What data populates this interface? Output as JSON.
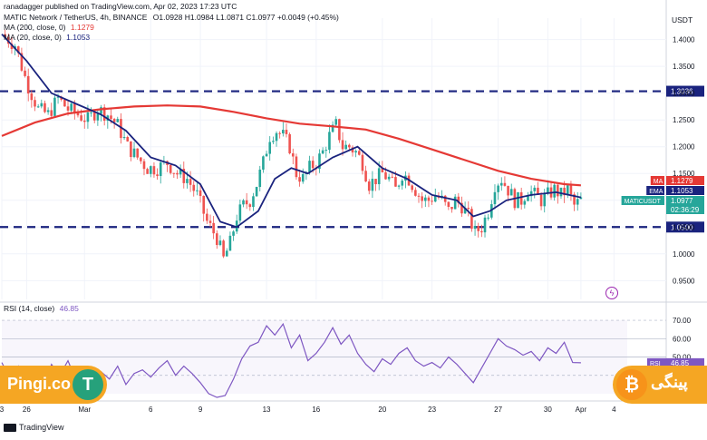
{
  "header": {
    "publisher": "ranadagger published on TradingView.com, Apr 02, 2023 17:23 UTC",
    "symbol": "MATIC Network / TetherUS, 4h, BINANCE",
    "ohlc": "O1.0928 H1.0984 L1.0871 C1.0977 +0.0049 (+0.45%)",
    "ma_line": "MA (200, close, 0)",
    "ma_value": "1.1279",
    "ema_line": "MA (20, close, 0)",
    "ema_value": "1.1053",
    "currency": "USDT"
  },
  "colors": {
    "up": "#26a69a",
    "down": "#ef5350",
    "ma": "#e53935",
    "ema": "#1a237e",
    "rsi": "#7e57c2",
    "level": "#1a237e",
    "axis_text": "#131722",
    "grid": "#f0f3fa",
    "price_tag": "#1a237e",
    "current_tag": "#26a69a"
  },
  "chart_data": [
    {
      "type": "candlestick",
      "title": "MATIC Network / TetherUS, 4h, BINANCE",
      "ylabel": "USDT",
      "ylim": [
        0.915,
        1.44
      ],
      "yticks": [
        0.95,
        1.0,
        1.05,
        1.1,
        1.15,
        1.2,
        1.25,
        1.3,
        1.35,
        1.4
      ],
      "ytick_labels": [
        "0.9500",
        "1.0000",
        "1.0500",
        "1.1000",
        "1.1500",
        "1.2000",
        "1.2500",
        "1.3000",
        "1.3500",
        "1.4000"
      ],
      "x_ticks": [
        {
          "label": "3",
          "day": 0
        },
        {
          "label": "26",
          "day": 1.5
        },
        {
          "label": "Mar",
          "day": 5
        },
        {
          "label": "6",
          "day": 9
        },
        {
          "label": "9",
          "day": 12
        },
        {
          "label": "13",
          "day": 16
        },
        {
          "label": "16",
          "day": 19
        },
        {
          "label": "20",
          "day": 23
        },
        {
          "label": "23",
          "day": 26
        },
        {
          "label": "27",
          "day": 30
        },
        {
          "label": "30",
          "day": 33
        },
        {
          "label": "Apr",
          "day": 35
        },
        {
          "label": "4",
          "day": 37
        }
      ],
      "x_range_days": [
        0,
        37.8
      ],
      "levels": [
        {
          "value": 1.3036,
          "label": "1.3036"
        },
        {
          "value": 1.05,
          "label": "1.0500"
        }
      ],
      "tags": [
        {
          "name": "MA",
          "value": "1.1279"
        },
        {
          "name": "EMA",
          "value": "1.1053"
        },
        {
          "name": "MATICUSDT",
          "value": "1.0977",
          "countdown": "02:36:29"
        }
      ],
      "close_path": [
        [
          0,
          1.41
        ],
        [
          0.8,
          1.39
        ],
        [
          1.5,
          1.32
        ],
        [
          2.2,
          1.27
        ],
        [
          2.8,
          1.26
        ],
        [
          3.4,
          1.29
        ],
        [
          4.0,
          1.27
        ],
        [
          4.6,
          1.26
        ],
        [
          5.2,
          1.25
        ],
        [
          5.8,
          1.27
        ],
        [
          6.4,
          1.26
        ],
        [
          7.0,
          1.24
        ],
        [
          7.6,
          1.2
        ],
        [
          8.2,
          1.18
        ],
        [
          8.8,
          1.16
        ],
        [
          9.4,
          1.16
        ],
        [
          10.0,
          1.17
        ],
        [
          10.6,
          1.15
        ],
        [
          11.2,
          1.14
        ],
        [
          11.8,
          1.11
        ],
        [
          12.4,
          1.06
        ],
        [
          13.0,
          1.03
        ],
        [
          13.4,
          0.99
        ],
        [
          13.8,
          1.02
        ],
        [
          14.2,
          1.07
        ],
        [
          14.6,
          1.09
        ],
        [
          15.0,
          1.1
        ],
        [
          15.4,
          1.13
        ],
        [
          15.8,
          1.17
        ],
        [
          16.2,
          1.22
        ],
        [
          16.6,
          1.23
        ],
        [
          17.0,
          1.22
        ],
        [
          17.4,
          1.2
        ],
        [
          17.8,
          1.15
        ],
        [
          18.2,
          1.14
        ],
        [
          18.6,
          1.16
        ],
        [
          19.0,
          1.17
        ],
        [
          19.4,
          1.19
        ],
        [
          19.8,
          1.22
        ],
        [
          20.2,
          1.24
        ],
        [
          20.6,
          1.2
        ],
        [
          21.0,
          1.2
        ],
        [
          21.4,
          1.19
        ],
        [
          21.8,
          1.17
        ],
        [
          22.2,
          1.13
        ],
        [
          22.6,
          1.14
        ],
        [
          23.0,
          1.15
        ],
        [
          23.4,
          1.14
        ],
        [
          23.8,
          1.12
        ],
        [
          24.2,
          1.15
        ],
        [
          24.6,
          1.14
        ],
        [
          25.0,
          1.12
        ],
        [
          25.4,
          1.1
        ],
        [
          25.8,
          1.1
        ],
        [
          26.2,
          1.11
        ],
        [
          26.6,
          1.1
        ],
        [
          27.0,
          1.08
        ],
        [
          27.4,
          1.1
        ],
        [
          27.8,
          1.09
        ],
        [
          28.2,
          1.07
        ],
        [
          28.6,
          1.04
        ],
        [
          29.0,
          1.05
        ],
        [
          29.4,
          1.08
        ],
        [
          29.8,
          1.13
        ],
        [
          30.2,
          1.14
        ],
        [
          30.6,
          1.12
        ],
        [
          31.0,
          1.1
        ],
        [
          31.4,
          1.1
        ],
        [
          31.8,
          1.12
        ],
        [
          32.2,
          1.11
        ],
        [
          32.6,
          1.1
        ],
        [
          33.0,
          1.11
        ],
        [
          33.4,
          1.12
        ],
        [
          33.8,
          1.11
        ],
        [
          34.2,
          1.12
        ],
        [
          34.6,
          1.09
        ],
        [
          35.0,
          1.1
        ]
      ],
      "series": [
        {
          "name": "MA (200, close, 0)",
          "points": [
            [
              0,
              1.22
            ],
            [
              2,
              1.245
            ],
            [
              4,
              1.262
            ],
            [
              6,
              1.27
            ],
            [
              8,
              1.275
            ],
            [
              10,
              1.277
            ],
            [
              12,
              1.275
            ],
            [
              14,
              1.265
            ],
            [
              16,
              1.253
            ],
            [
              18,
              1.243
            ],
            [
              20,
              1.238
            ],
            [
              22,
              1.232
            ],
            [
              24,
              1.215
            ],
            [
              26,
              1.195
            ],
            [
              28,
              1.175
            ],
            [
              30,
              1.155
            ],
            [
              32,
              1.14
            ],
            [
              34,
              1.13
            ],
            [
              35,
              1.1279
            ]
          ]
        },
        {
          "name": "MA (20, close, 0)",
          "points": [
            [
              0,
              1.41
            ],
            [
              1.5,
              1.36
            ],
            [
              3,
              1.3
            ],
            [
              4.5,
              1.28
            ],
            [
              6,
              1.26
            ],
            [
              7.5,
              1.23
            ],
            [
              9,
              1.18
            ],
            [
              10.5,
              1.165
            ],
            [
              12,
              1.13
            ],
            [
              13.2,
              1.06
            ],
            [
              14.2,
              1.05
            ],
            [
              15.5,
              1.08
            ],
            [
              16.5,
              1.14
            ],
            [
              17.5,
              1.16
            ],
            [
              18.5,
              1.15
            ],
            [
              20,
              1.18
            ],
            [
              21.5,
              1.2
            ],
            [
              23,
              1.16
            ],
            [
              24.5,
              1.14
            ],
            [
              26,
              1.11
            ],
            [
              27.5,
              1.1
            ],
            [
              28.5,
              1.07
            ],
            [
              29.5,
              1.08
            ],
            [
              30.5,
              1.1
            ],
            [
              32,
              1.11
            ],
            [
              33.5,
              1.115
            ],
            [
              35,
              1.1053
            ]
          ]
        }
      ]
    },
    {
      "type": "line",
      "title": "RSI (14, close)",
      "value_label": "46.85",
      "ylim": [
        27,
        74
      ],
      "yticks": [
        40,
        50,
        60,
        70
      ],
      "ytick_labels": [
        "40.00",
        "50.00",
        "60.00",
        "70.00"
      ],
      "tag": {
        "name": "RSI",
        "value": "46.85"
      },
      "series": [
        {
          "name": "RSI (14, close)",
          "points": [
            [
              0,
              47
            ],
            [
              0.5,
              38
            ],
            [
              1,
              45
            ],
            [
              1.5,
              35
            ],
            [
              2,
              42
            ],
            [
              2.5,
              32
            ],
            [
              3,
              46
            ],
            [
              3.5,
              40
            ],
            [
              4,
              48
            ],
            [
              4.5,
              37
            ],
            [
              5,
              44
            ],
            [
              5.5,
              36
            ],
            [
              6,
              42
            ],
            [
              6.5,
              38
            ],
            [
              7,
              45
            ],
            [
              7.5,
              35
            ],
            [
              8,
              41
            ],
            [
              8.5,
              43
            ],
            [
              9,
              39
            ],
            [
              9.5,
              44
            ],
            [
              10,
              48
            ],
            [
              10.5,
              40
            ],
            [
              11,
              45
            ],
            [
              11.5,
              41
            ],
            [
              12,
              36
            ],
            [
              12.5,
              30
            ],
            [
              13,
              28
            ],
            [
              13.5,
              29
            ],
            [
              14,
              38
            ],
            [
              14.5,
              49
            ],
            [
              15,
              56
            ],
            [
              15.5,
              58
            ],
            [
              16,
              67
            ],
            [
              16.5,
              62
            ],
            [
              17,
              68
            ],
            [
              17.5,
              55
            ],
            [
              18,
              62
            ],
            [
              18.5,
              48
            ],
            [
              19,
              52
            ],
            [
              19.5,
              58
            ],
            [
              20,
              66
            ],
            [
              20.5,
              57
            ],
            [
              21,
              62
            ],
            [
              21.5,
              52
            ],
            [
              22,
              46
            ],
            [
              22.5,
              42
            ],
            [
              23,
              49
            ],
            [
              23.5,
              46
            ],
            [
              24,
              52
            ],
            [
              24.5,
              55
            ],
            [
              25,
              48
            ],
            [
              25.5,
              45
            ],
            [
              26,
              47
            ],
            [
              26.5,
              44
            ],
            [
              27,
              50
            ],
            [
              27.5,
              46
            ],
            [
              28,
              41
            ],
            [
              28.5,
              36
            ],
            [
              29,
              44
            ],
            [
              29.5,
              52
            ],
            [
              30,
              60
            ],
            [
              30.5,
              56
            ],
            [
              31,
              54
            ],
            [
              31.5,
              51
            ],
            [
              32,
              53
            ],
            [
              32.5,
              48
            ],
            [
              33,
              55
            ],
            [
              33.5,
              52
            ],
            [
              34,
              58
            ],
            [
              34.5,
              47
            ],
            [
              35,
              46.85
            ]
          ]
        }
      ]
    }
  ],
  "watermarks": {
    "left_brand": "Pingi.co",
    "right_brand": "پینگی"
  },
  "footer": {
    "brand": "TradingView"
  }
}
